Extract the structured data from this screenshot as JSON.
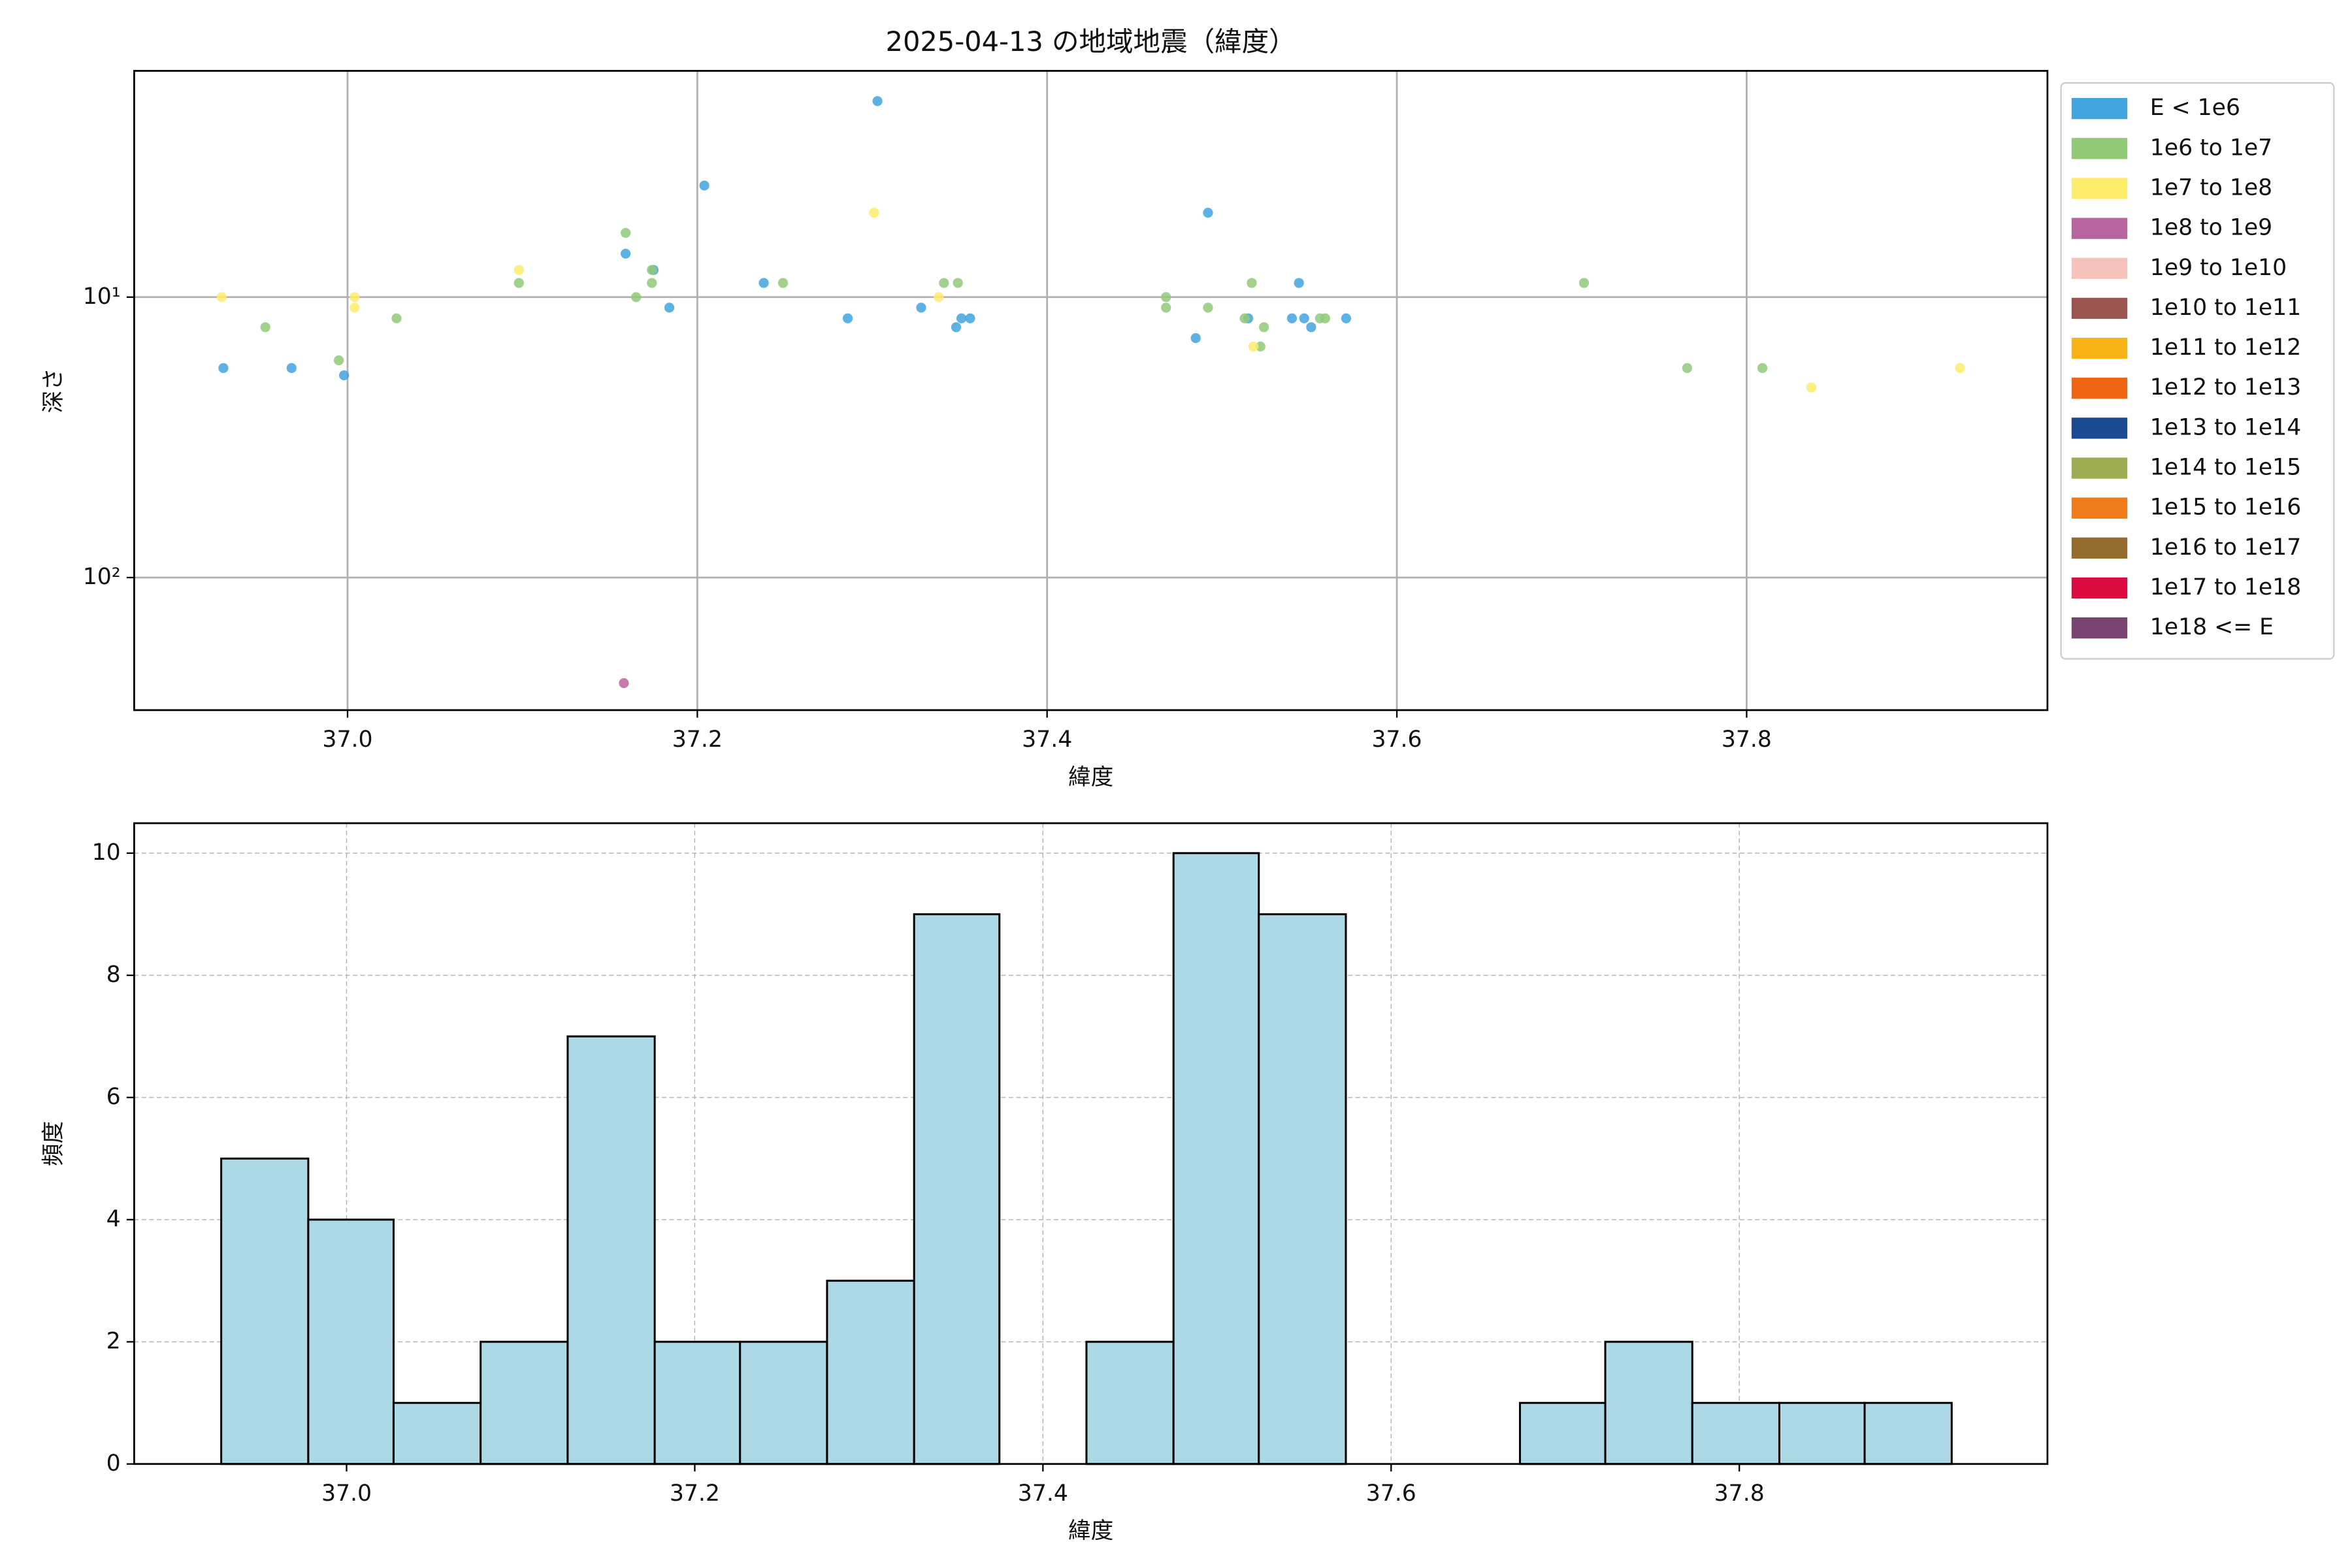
{
  "chart_data": [
    {
      "type": "scatter",
      "title": "2025-04-13 の地域地震（緯度）",
      "x_label": "緯度",
      "y_label": "深さ",
      "log_y": true,
      "y_inverted": true,
      "grid": true,
      "legend": "outside right",
      "xlim": [
        36.878,
        37.972
      ],
      "ylim": [
        1.56,
        297
      ],
      "xticks": [
        {
          "value": 37,
          "label": "37.0"
        },
        37.2,
        37.4,
        37.6,
        37.8
      ],
      "yticks": [
        {
          "value": 10,
          "label": "10¹"
        },
        {
          "value": 100,
          "label": "10²"
        }
      ],
      "series": [
        {
          "name": "E < 1e6",
          "color": "#41a4de",
          "x": [
            36.929,
            36.968,
            36.998,
            37.159,
            37.175,
            37.184,
            37.204,
            37.238,
            37.286,
            37.303,
            37.328,
            37.348,
            37.351,
            37.356,
            37.485,
            37.492,
            37.515,
            37.54,
            37.547,
            37.544,
            37.551,
            37.571
          ],
          "values": [
            17.9,
            17.9,
            19.0,
            7.0,
            8.0,
            10.9,
            4.0,
            8.9,
            11.9,
            2.0,
            10.9,
            12.8,
            11.9,
            11.9,
            14.0,
            5.0,
            11.9,
            11.9,
            11.9,
            8.9,
            12.8,
            11.9
          ]
        },
        {
          "name": "1e6 to 1e7",
          "color": "#90c978",
          "x": [
            36.953,
            36.995,
            37.028,
            37.098,
            37.159,
            37.165,
            37.174,
            37.174,
            37.249,
            37.341,
            37.349,
            37.468,
            37.468,
            37.492,
            37.513,
            37.517,
            37.524,
            37.522,
            37.556,
            37.559,
            37.707,
            37.766,
            37.809
          ],
          "values": [
            12.8,
            16.8,
            11.9,
            8.9,
            5.9,
            10,
            8.9,
            8.0,
            8.9,
            8.9,
            8.9,
            10,
            10.9,
            10.9,
            11.9,
            8.9,
            12.8,
            15.0,
            11.9,
            11.9,
            8.9,
            17.9,
            17.9
          ]
        },
        {
          "name": "1e7 to 1e8",
          "color": "#fded6b",
          "x": [
            36.928,
            37.004,
            37.004,
            37.098,
            37.301,
            37.338,
            37.518,
            37.837,
            37.922
          ],
          "values": [
            10,
            10,
            10.9,
            8.0,
            5.0,
            10,
            15.0,
            21.0,
            17.9
          ]
        },
        {
          "name": "1e8 to 1e9",
          "color": "#b8649e",
          "x": [
            37.158
          ],
          "values": [
            238
          ]
        },
        {
          "name": "1e9 to 1e10",
          "color": "#f5c3bb",
          "x": [],
          "values": []
        },
        {
          "name": "1e10 to 1e11",
          "color": "#9a5550",
          "x": [],
          "values": []
        },
        {
          "name": "1e11 to 1e12",
          "color": "#f8b417",
          "x": [],
          "values": []
        },
        {
          "name": "1e12 to 1e13",
          "color": "#ef6410",
          "x": [],
          "values": []
        },
        {
          "name": "1e13 to 1e14",
          "color": "#1a4a92",
          "x": [],
          "values": []
        },
        {
          "name": "1e14 to 1e15",
          "color": "#9ead52",
          "x": [],
          "values": []
        },
        {
          "name": "1e15 to 1e16",
          "color": "#ef7a1a",
          "x": [],
          "values": []
        },
        {
          "name": "1e16 to 1e17",
          "color": "#936d2e",
          "x": [],
          "values": []
        },
        {
          "name": "1e17 to 1e18",
          "color": "#dc0b3f",
          "x": [],
          "values": []
        },
        {
          "name": "1e18 <= E",
          "color": "#7a4470",
          "x": [],
          "values": []
        }
      ]
    },
    {
      "type": "histogram",
      "x_label": "緯度",
      "y_label": "頻度",
      "grid": true,
      "grid_style": "dashed",
      "color": "#add8e6",
      "edge_color": "#000000",
      "xlim": [
        36.878,
        37.977
      ],
      "ylim": [
        0,
        10.49
      ],
      "xticks": [
        {
          "value": 37,
          "label": "37.0"
        },
        37.2,
        37.4,
        37.6,
        37.8
      ],
      "yticks": [
        0,
        2,
        4,
        6,
        8,
        10
      ],
      "bins": [
        36.928,
        36.978,
        37.027,
        37.077,
        37.127,
        37.177,
        37.226,
        37.276,
        37.326,
        37.375,
        37.425,
        37.475,
        37.524,
        37.574,
        37.624,
        37.674,
        37.723,
        37.773,
        37.823,
        37.872,
        37.922
      ],
      "counts": [
        5,
        4,
        1,
        2,
        7,
        2,
        2,
        3,
        9,
        0,
        2,
        10,
        9,
        0,
        0,
        1,
        2,
        1,
        1,
        1
      ]
    }
  ]
}
